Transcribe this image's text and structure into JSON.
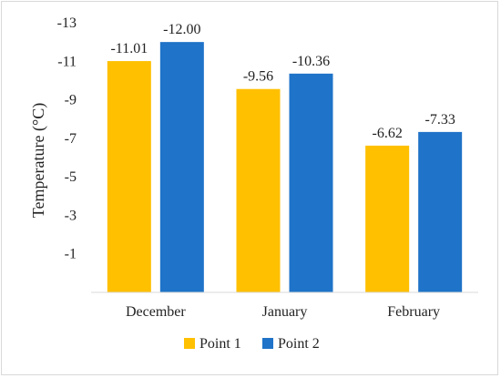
{
  "chart_data": {
    "type": "bar",
    "title": "",
    "xlabel": "",
    "ylabel": "Temperature (°C)",
    "categories": [
      "December",
      "January",
      "February"
    ],
    "series": [
      {
        "name": "Point 1",
        "color": "#FFC000",
        "values": [
          -11.01,
          -9.56,
          -6.62
        ],
        "labels": [
          "-11.01",
          "-9.56",
          "-6.62"
        ]
      },
      {
        "name": "Point 2",
        "color": "#1F73C8",
        "values": [
          -12.0,
          -10.36,
          -7.33
        ],
        "labels": [
          "-12.00",
          "-10.36",
          "-7.33"
        ]
      }
    ],
    "yaxis": {
      "reversed": true,
      "ylim": [
        1,
        -13
      ],
      "ticks": [
        -1,
        -3,
        -5,
        -7,
        -9,
        -11,
        -13
      ],
      "tick_labels": [
        "-1",
        "-3",
        "-5",
        "-7",
        "-9",
        "-11",
        "-13"
      ]
    },
    "grid": false,
    "legend": "bottom"
  }
}
